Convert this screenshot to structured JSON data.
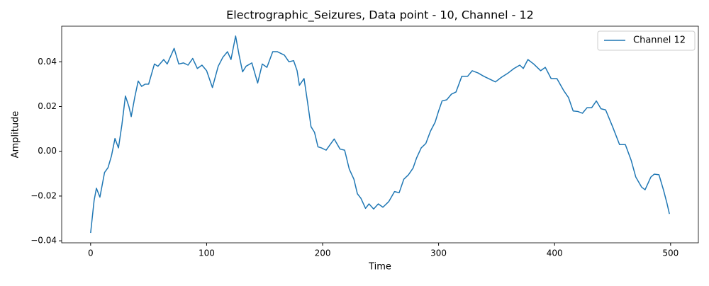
{
  "chart_data": {
    "type": "line",
    "title": "Electrographic_Seizures, Data point - 10, Channel - 12",
    "xlabel": "Time",
    "ylabel": "Amplitude",
    "x": [
      0,
      3,
      5,
      8,
      12,
      15,
      18,
      21,
      24,
      27,
      30,
      33,
      35,
      38,
      41,
      44,
      47,
      50,
      55,
      58,
      63,
      66,
      72,
      76,
      80,
      84,
      88,
      92,
      96,
      100,
      105,
      110,
      114,
      118,
      121,
      125,
      128,
      131,
      134,
      139,
      144,
      148,
      152,
      157,
      161,
      167,
      171,
      175,
      178,
      180,
      184,
      187,
      190,
      193,
      196,
      199,
      203,
      210,
      215,
      219,
      223,
      227,
      230,
      233,
      237,
      240,
      244,
      248,
      252,
      257,
      262,
      266,
      270,
      274,
      278,
      281,
      285,
      289,
      293,
      297,
      300,
      303,
      307,
      311,
      315,
      320,
      325,
      329,
      334,
      339,
      343,
      349,
      354,
      360,
      365,
      370,
      373,
      377,
      382,
      388,
      392,
      397,
      402,
      408,
      412,
      416,
      420,
      424,
      428,
      432,
      436,
      440,
      444,
      450,
      456,
      461,
      466,
      470,
      475,
      478,
      483,
      486,
      490,
      494,
      497,
      499
    ],
    "series": [
      {
        "name": "Channel 12",
        "color": "#1f77b4",
        "values": [
          -0.0365,
          -0.022,
          -0.0165,
          -0.0205,
          -0.0095,
          -0.0073,
          -0.002,
          0.0057,
          0.0015,
          0.012,
          0.0247,
          0.02,
          0.0155,
          0.024,
          0.0314,
          0.029,
          0.03,
          0.03,
          0.039,
          0.038,
          0.041,
          0.039,
          0.046,
          0.039,
          0.0395,
          0.0385,
          0.0415,
          0.037,
          0.0385,
          0.036,
          0.0285,
          0.038,
          0.042,
          0.0445,
          0.041,
          0.0515,
          0.043,
          0.0355,
          0.038,
          0.0395,
          0.0305,
          0.039,
          0.0375,
          0.0445,
          0.0445,
          0.043,
          0.04,
          0.0405,
          0.036,
          0.0295,
          0.0325,
          0.022,
          0.011,
          0.0085,
          0.002,
          0.0015,
          0.0005,
          0.0055,
          0.001,
          0.0005,
          -0.008,
          -0.0125,
          -0.019,
          -0.021,
          -0.0255,
          -0.0235,
          -0.0258,
          -0.0235,
          -0.025,
          -0.0225,
          -0.018,
          -0.0185,
          -0.0125,
          -0.0105,
          -0.0075,
          -0.003,
          0.0015,
          0.0035,
          0.009,
          0.013,
          0.018,
          0.0225,
          0.023,
          0.0255,
          0.0265,
          0.0335,
          0.0335,
          0.036,
          0.035,
          0.0335,
          0.0325,
          0.031,
          0.033,
          0.035,
          0.037,
          0.0385,
          0.037,
          0.041,
          0.039,
          0.036,
          0.0375,
          0.0325,
          0.0325,
          0.027,
          0.024,
          0.018,
          0.0178,
          0.017,
          0.0195,
          0.0195,
          0.0225,
          0.019,
          0.0185,
          0.011,
          0.003,
          0.003,
          -0.004,
          -0.0115,
          -0.016,
          -0.0172,
          -0.0115,
          -0.0102,
          -0.0105,
          -0.0175,
          -0.0235,
          -0.028
        ]
      }
    ],
    "xlim": [
      -24.95,
      523.95
    ],
    "xticks": [
      0,
      100,
      200,
      300,
      400,
      500
    ],
    "ylim": [
      -0.0409,
      0.0559
    ],
    "yticks": [
      {
        "value": -0.04,
        "label": "−0.04"
      },
      {
        "value": -0.02,
        "label": "−0.02"
      },
      {
        "value": 0,
        "label": "0.00"
      },
      0.02,
      0.04
    ],
    "legend": "upper right"
  }
}
